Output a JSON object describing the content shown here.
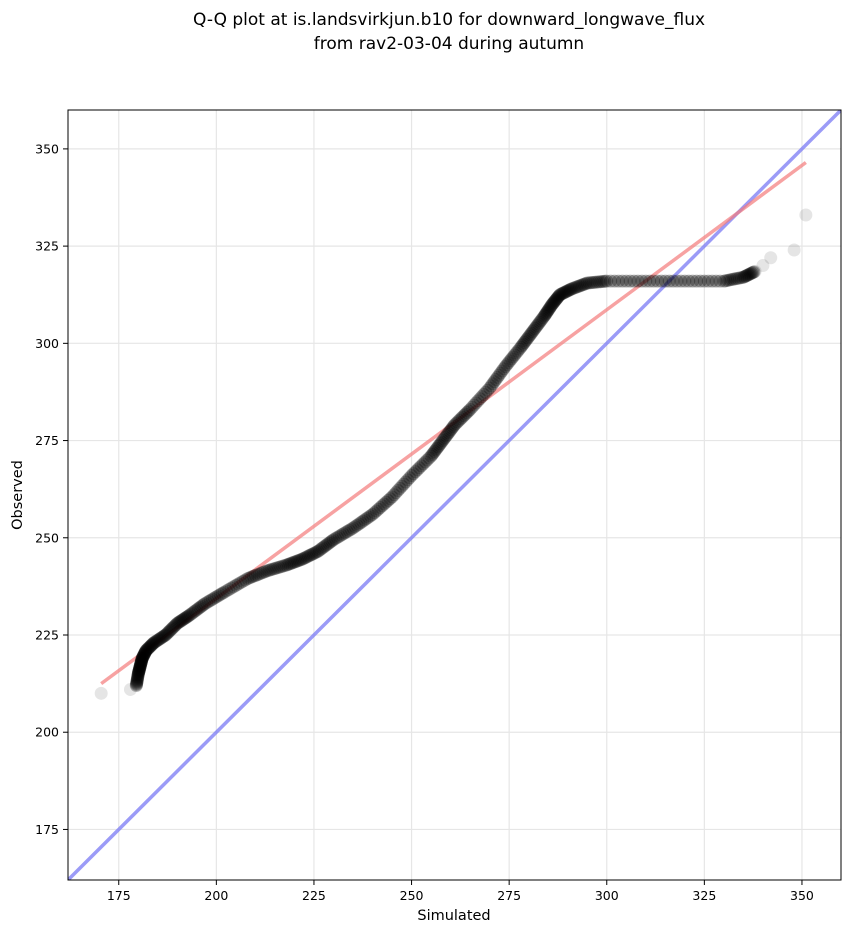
{
  "chart_data": {
    "type": "scatter",
    "title_line1": "Q-Q plot at is.landsvirkjun.b10 for downward_longwave_flux",
    "title_line2": "from rav2-03-04 during autumn",
    "xlabel": "Simulated",
    "ylabel": "Observed",
    "xlim": [
      162,
      360
    ],
    "ylim": [
      162,
      360
    ],
    "xticks": [
      175,
      200,
      225,
      250,
      275,
      300,
      325,
      350
    ],
    "yticks": [
      175,
      200,
      225,
      250,
      275,
      300,
      325,
      350
    ],
    "grid": true,
    "colors": {
      "points": "#000000",
      "fit_line": "#f47a7a",
      "identity_line": "#7a7af4"
    },
    "fit_line": {
      "x": [
        170.5,
        351
      ],
      "y": [
        212.5,
        346.5
      ]
    },
    "identity_line": {
      "x": [
        162,
        360
      ],
      "y": [
        162,
        360
      ]
    },
    "quantile_curve": [
      [
        170.5,
        210
      ],
      [
        178,
        211
      ],
      [
        179.5,
        212
      ],
      [
        180,
        215
      ],
      [
        180.5,
        217
      ],
      [
        181,
        219
      ],
      [
        182,
        221
      ],
      [
        184,
        223
      ],
      [
        187,
        225
      ],
      [
        190,
        228
      ],
      [
        193,
        230
      ],
      [
        197,
        233
      ],
      [
        202,
        236
      ],
      [
        208,
        239.5
      ],
      [
        213,
        241.5
      ],
      [
        218,
        243
      ],
      [
        222,
        244.5
      ],
      [
        226,
        246.5
      ],
      [
        230,
        249.5
      ],
      [
        235,
        252.5
      ],
      [
        240,
        256
      ],
      [
        245,
        260.5
      ],
      [
        250,
        266
      ],
      [
        255,
        271
      ],
      [
        258,
        275
      ],
      [
        261,
        279
      ],
      [
        265,
        283
      ],
      [
        270,
        288.5
      ],
      [
        274,
        294
      ],
      [
        278,
        299
      ],
      [
        281,
        303
      ],
      [
        284,
        307
      ],
      [
        286,
        310
      ],
      [
        288,
        312.5
      ],
      [
        291,
        314
      ],
      [
        295,
        315.5
      ],
      [
        300,
        316
      ],
      [
        310,
        316
      ],
      [
        320,
        316
      ],
      [
        330,
        316
      ],
      [
        335,
        317
      ],
      [
        338,
        318.5
      ],
      [
        340,
        320
      ],
      [
        342,
        322
      ],
      [
        348,
        324
      ],
      [
        351,
        333
      ]
    ]
  }
}
